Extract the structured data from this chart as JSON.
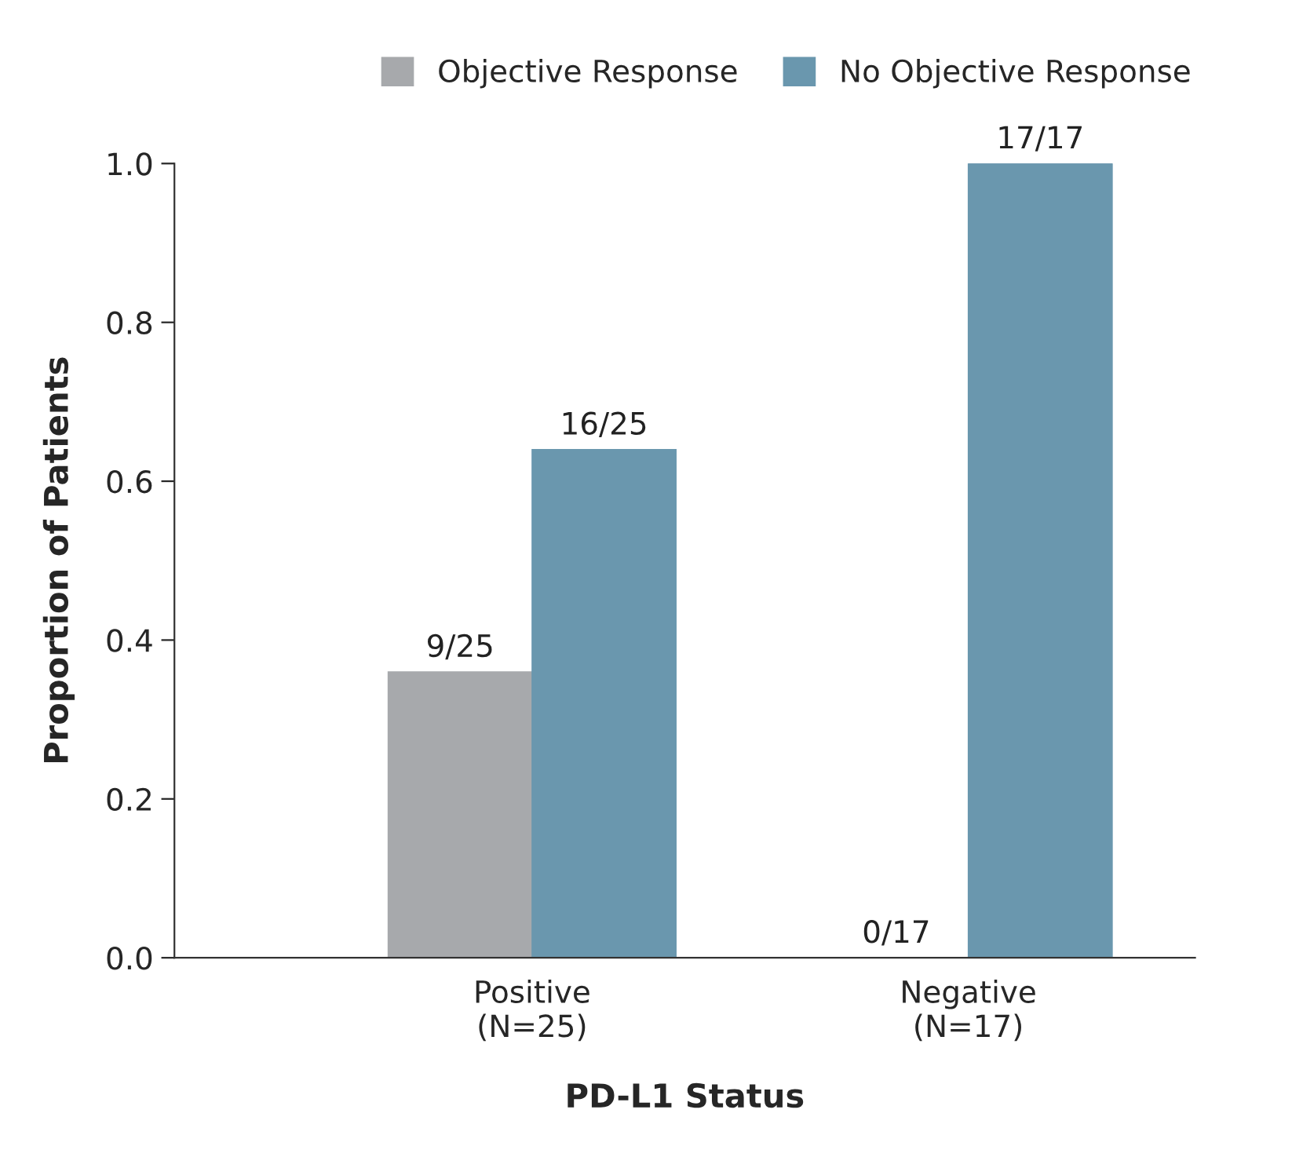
{
  "chart_data": {
    "type": "bar",
    "categories": [
      "Positive\n(N=25)",
      "Negative\n(N=17)"
    ],
    "xlabel": "PD-L1 Status",
    "ylabel": "Proportion of Patients",
    "series": [
      {
        "name": "Objective Response",
        "color": "#a7a9ac",
        "values": [
          0.36,
          0
        ],
        "value_labels": [
          "9/25",
          "0/17"
        ]
      },
      {
        "name": "No Objective Response",
        "color": "#6a97ae",
        "values": [
          0.64,
          1.0
        ],
        "value_labels": [
          "16/25",
          "17/17"
        ]
      }
    ],
    "ylim": [
      0,
      1.0
    ],
    "yticks": [
      {
        "value": 0,
        "label": "0.0"
      },
      {
        "value": 0.2,
        "label": "0.2"
      },
      {
        "value": 0.4,
        "label": "0.4"
      },
      {
        "value": 0.6,
        "label": "0.6"
      },
      {
        "value": 0.8,
        "label": "0.8"
      },
      {
        "value": 1.0,
        "label": "1.0"
      }
    ],
    "grid": false,
    "legend": "top"
  }
}
